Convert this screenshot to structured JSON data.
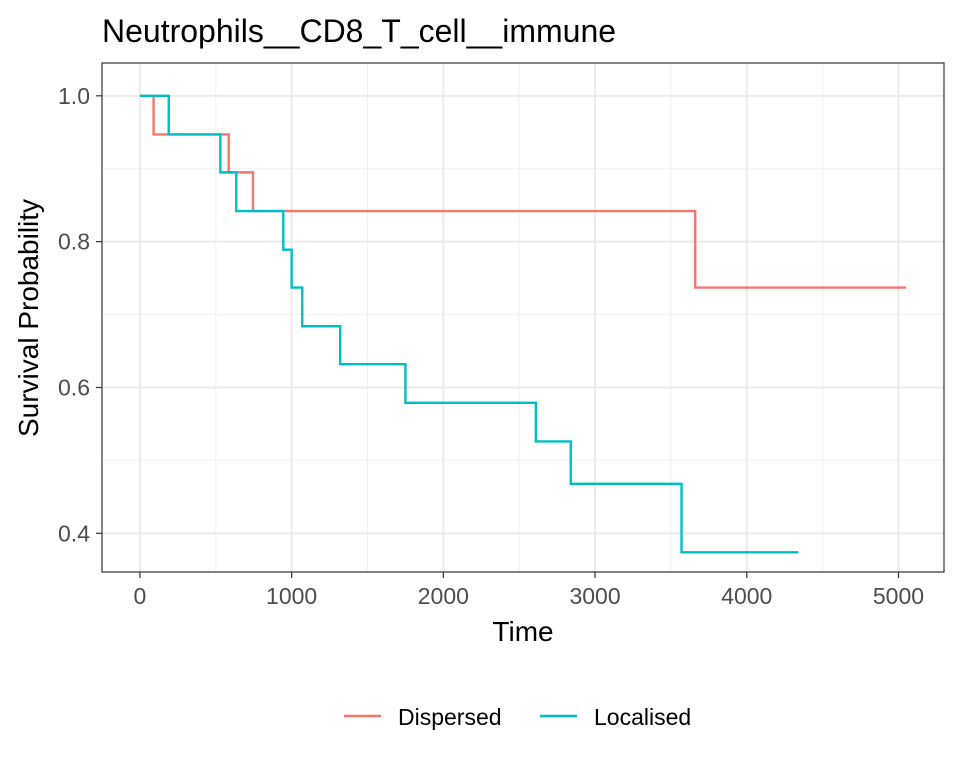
{
  "chart_data": {
    "type": "line",
    "step": true,
    "title": "Neutrophils__CD8_T_cell__immune",
    "xlabel": "Time",
    "ylabel": "Survival Probability",
    "xlim": [
      -250,
      5300
    ],
    "ylim": [
      0.347,
      1.045
    ],
    "x_ticks": [
      0,
      1000,
      2000,
      3000,
      4000,
      5000
    ],
    "x_tick_labels": [
      "0",
      "1000",
      "2000",
      "3000",
      "4000",
      "5000"
    ],
    "y_ticks": [
      0.4,
      0.6,
      0.8,
      1.0
    ],
    "y_tick_labels": [
      "0.4",
      "0.6",
      "0.8",
      "1.0"
    ],
    "grid": true,
    "legend_position": "bottom",
    "series": [
      {
        "name": "Dispersed",
        "color": "#F8766D",
        "x": [
          0,
          90,
          585,
          745,
          3660,
          5050
        ],
        "y": [
          1.0,
          0.947,
          0.895,
          0.842,
          0.737,
          0.737
        ]
      },
      {
        "name": "Localised",
        "color": "#00BFC4",
        "x": [
          0,
          190,
          530,
          635,
          945,
          1000,
          1070,
          1320,
          1750,
          2610,
          2840,
          3570,
          4340
        ],
        "y": [
          1.0,
          0.947,
          0.895,
          0.842,
          0.789,
          0.737,
          0.684,
          0.632,
          0.579,
          0.526,
          0.468,
          0.374,
          0.374
        ]
      }
    ]
  }
}
